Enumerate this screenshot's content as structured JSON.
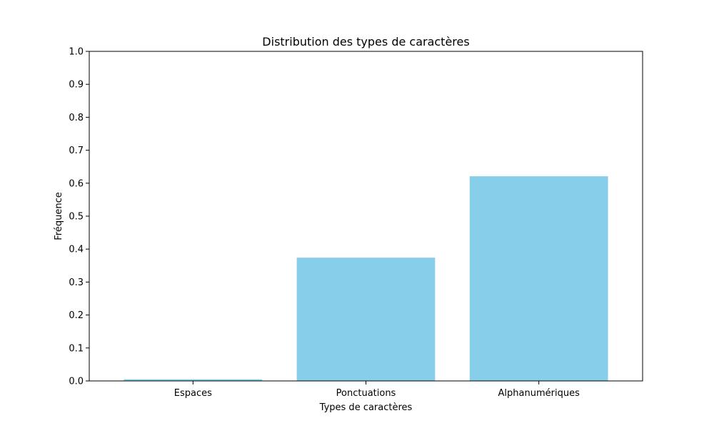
{
  "chart_data": {
    "type": "bar",
    "title": "Distribution des types de caractères",
    "xlabel": "Types de caractères",
    "ylabel": "Fréquence",
    "categories": [
      "Espaces",
      "Ponctuations",
      "Alphanumériques"
    ],
    "values": [
      0.005,
      0.374,
      0.621
    ],
    "ylim": [
      0,
      1.0
    ],
    "yticks": [
      "0.0",
      "0.1",
      "0.2",
      "0.3",
      "0.4",
      "0.5",
      "0.6",
      "0.7",
      "0.8",
      "0.9",
      "1.0"
    ],
    "bar_color": "#87ceeb",
    "grid": false,
    "legend": false
  }
}
